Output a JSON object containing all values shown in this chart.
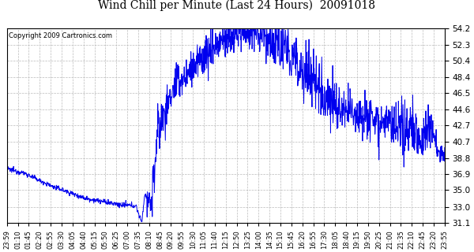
{
  "title": "Wind Chill per Minute (Last 24 Hours)  20091018",
  "copyright_text": "Copyright 2009 Cartronics.com",
  "y_ticks": [
    31.1,
    33.0,
    35.0,
    36.9,
    38.8,
    40.7,
    42.7,
    44.6,
    46.5,
    48.4,
    50.4,
    52.3,
    54.2
  ],
  "ylim": [
    31.1,
    54.2
  ],
  "line_color": "#0000EE",
  "background_color": "#ffffff",
  "grid_color": "#bbbbbb",
  "x_labels": [
    "23:59",
    "01:10",
    "01:45",
    "02:20",
    "02:55",
    "03:30",
    "04:05",
    "04:40",
    "05:15",
    "05:50",
    "06:25",
    "07:00",
    "07:35",
    "08:10",
    "08:45",
    "09:20",
    "09:55",
    "10:30",
    "11:05",
    "11:40",
    "12:15",
    "12:50",
    "13:25",
    "14:00",
    "14:35",
    "15:10",
    "15:45",
    "16:20",
    "16:55",
    "17:30",
    "18:05",
    "18:40",
    "19:15",
    "19:50",
    "20:25",
    "21:00",
    "21:35",
    "22:10",
    "22:45",
    "23:20",
    "23:55"
  ]
}
